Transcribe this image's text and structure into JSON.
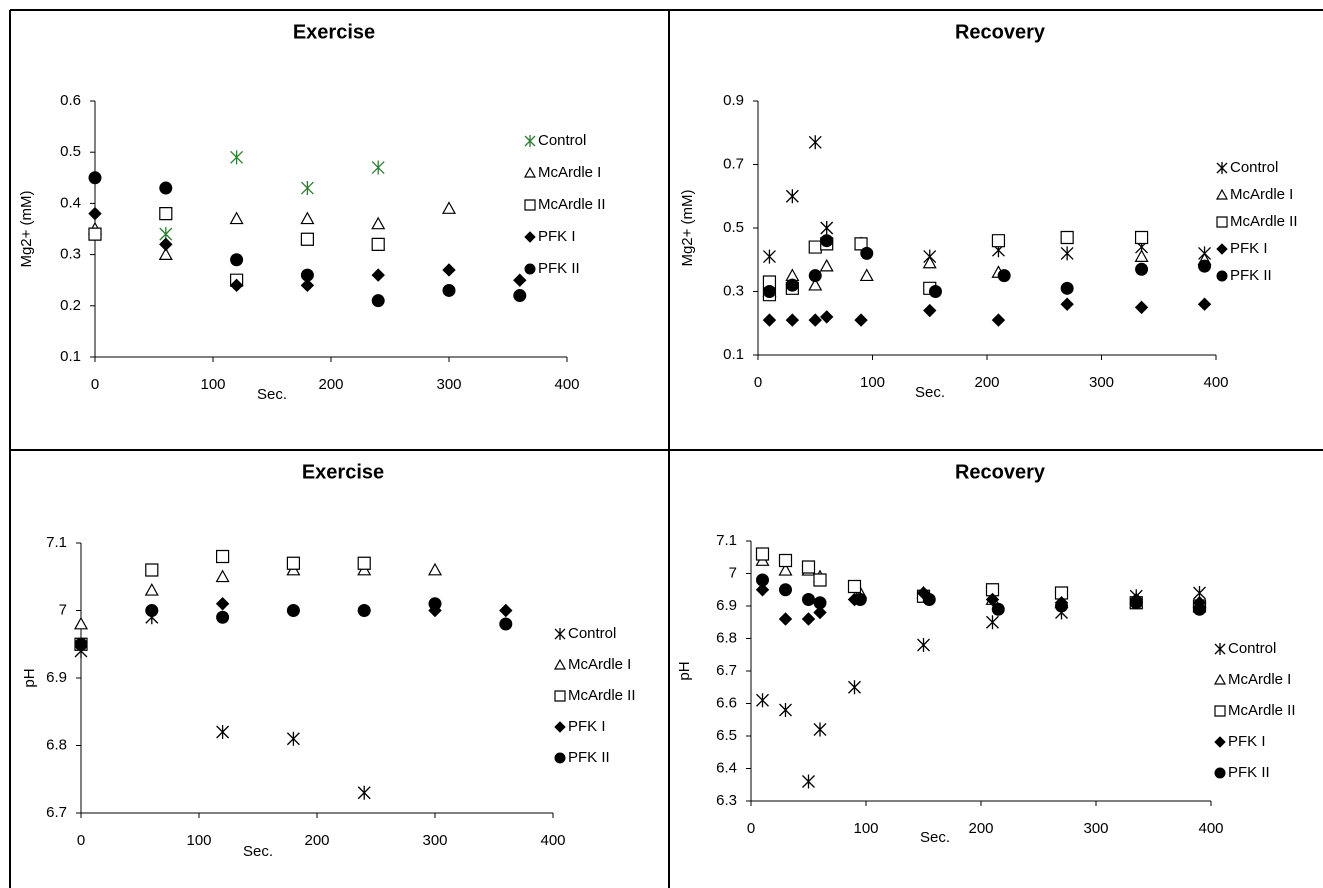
{
  "chart_data": [
    {
      "type": "scatter",
      "title": "Exercise",
      "x_label": "Sec.",
      "y_label": "Mg2+ (mM)",
      "xlim": [
        0,
        400
      ],
      "xticks": [
        0,
        100,
        200,
        300,
        400
      ],
      "ylim": [
        0.1,
        0.6
      ],
      "yticks": [
        0.1,
        0.2,
        0.3,
        0.4,
        0.5,
        0.6
      ],
      "series": [
        {
          "name": "Control",
          "marker": "asterisk",
          "color": "#2e7d32",
          "x": [
            60,
            120,
            180,
            240
          ],
          "values": [
            0.34,
            0.49,
            0.43,
            0.47
          ]
        },
        {
          "name": "McArdle I",
          "marker": "triangle",
          "color": "#000000",
          "x": [
            0,
            60,
            120,
            180,
            240,
            300
          ],
          "values": [
            0.35,
            0.3,
            0.37,
            0.37,
            0.36,
            0.39
          ]
        },
        {
          "name": "McArdle II",
          "marker": "square",
          "color": "#000000",
          "x": [
            0,
            60,
            120,
            180,
            240
          ],
          "values": [
            0.34,
            0.38,
            0.25,
            0.33,
            0.32
          ]
        },
        {
          "name": "PFK I",
          "marker": "diamond",
          "color": "#000000",
          "x": [
            0,
            60,
            120,
            180,
            240,
            300,
            360
          ],
          "values": [
            0.38,
            0.32,
            0.24,
            0.24,
            0.26,
            0.27,
            0.25
          ]
        },
        {
          "name": "PFK II",
          "marker": "circle",
          "color": "#000000",
          "x": [
            0,
            60,
            120,
            180,
            240,
            300,
            360
          ],
          "values": [
            0.45,
            0.43,
            0.29,
            0.26,
            0.21,
            0.23,
            0.22
          ]
        }
      ]
    },
    {
      "type": "scatter",
      "title": "Recovery",
      "x_label": "Sec.",
      "y_label": "Mg2+ (mM)",
      "xlim": [
        0,
        400
      ],
      "xticks": [
        0,
        100,
        200,
        300,
        400
      ],
      "ylim": [
        0.1,
        0.9
      ],
      "yticks": [
        0.1,
        0.3,
        0.5,
        0.7,
        0.9
      ],
      "series": [
        {
          "name": "Control",
          "marker": "asterisk",
          "color": "#000000",
          "x": [
            10,
            30,
            50,
            60,
            90,
            150,
            210,
            270,
            335,
            390
          ],
          "values": [
            0.41,
            0.6,
            0.77,
            0.5,
            0.45,
            0.41,
            0.43,
            0.42,
            0.44,
            0.42
          ]
        },
        {
          "name": "McArdle I",
          "marker": "triangle",
          "color": "#000000",
          "x": [
            10,
            30,
            50,
            60,
            95,
            150,
            210,
            335,
            390
          ],
          "values": [
            0.3,
            0.35,
            0.32,
            0.38,
            0.35,
            0.39,
            0.36,
            0.41,
            0.4
          ]
        },
        {
          "name": "McArdle II",
          "marker": "square",
          "color": "#000000",
          "x": [
            10,
            10,
            30,
            50,
            60,
            90,
            150,
            210,
            270,
            335
          ],
          "values": [
            0.33,
            0.29,
            0.31,
            0.44,
            0.45,
            0.45,
            0.31,
            0.46,
            0.47,
            0.47
          ]
        },
        {
          "name": "PFK I",
          "marker": "diamond",
          "color": "#000000",
          "x": [
            10,
            30,
            50,
            60,
            90,
            150,
            210,
            270,
            335,
            390
          ],
          "values": [
            0.21,
            0.21,
            0.21,
            0.22,
            0.21,
            0.24,
            0.21,
            0.26,
            0.25,
            0.26
          ]
        },
        {
          "name": "PFK II",
          "marker": "circle",
          "color": "#000000",
          "x": [
            10,
            30,
            50,
            60,
            95,
            155,
            215,
            270,
            335,
            390
          ],
          "values": [
            0.3,
            0.32,
            0.35,
            0.46,
            0.42,
            0.3,
            0.35,
            0.31,
            0.37,
            0.38
          ]
        }
      ]
    },
    {
      "type": "scatter",
      "title": "Exercise",
      "x_label": "Sec.",
      "y_label": "pH",
      "xlim": [
        0,
        400
      ],
      "xticks": [
        0,
        100,
        200,
        300,
        400
      ],
      "ylim": [
        6.7,
        7.1
      ],
      "yticks": [
        6.7,
        6.8,
        6.9,
        7,
        7.1
      ],
      "series": [
        {
          "name": "Control",
          "marker": "asterisk",
          "color": "#000000",
          "x": [
            0,
            60,
            120,
            180,
            240
          ],
          "values": [
            6.94,
            6.99,
            6.82,
            6.81,
            6.73
          ]
        },
        {
          "name": "McArdle I",
          "marker": "triangle",
          "color": "#000000",
          "x": [
            0,
            60,
            120,
            180,
            240,
            300
          ],
          "values": [
            6.98,
            7.03,
            7.05,
            7.06,
            7.06,
            7.06
          ]
        },
        {
          "name": "McArdle II",
          "marker": "square",
          "color": "#000000",
          "x": [
            0,
            60,
            120,
            180,
            240
          ],
          "values": [
            6.95,
            7.06,
            7.08,
            7.07,
            7.07
          ]
        },
        {
          "name": "PFK I",
          "marker": "diamond",
          "color": "#000000",
          "x": [
            0,
            60,
            120,
            180,
            240,
            300,
            360
          ],
          "values": [
            6.95,
            7.0,
            7.01,
            7.0,
            7.0,
            7.0,
            7.0
          ]
        },
        {
          "name": "PFK II",
          "marker": "circle",
          "color": "#000000",
          "x": [
            0,
            60,
            120,
            180,
            240,
            300,
            360
          ],
          "values": [
            6.95,
            7.0,
            6.99,
            7.0,
            7.0,
            7.01,
            6.98
          ]
        }
      ]
    },
    {
      "type": "scatter",
      "title": "Recovery",
      "x_label": "Sec.",
      "y_label": "pH",
      "xlim": [
        0,
        400
      ],
      "xticks": [
        0,
        100,
        200,
        300,
        400
      ],
      "ylim": [
        6.3,
        7.1
      ],
      "yticks": [
        6.3,
        6.4,
        6.5,
        6.6,
        6.7,
        6.8,
        6.9,
        7,
        7.1
      ],
      "series": [
        {
          "name": "Control",
          "marker": "asterisk",
          "color": "#000000",
          "x": [
            10,
            30,
            50,
            60,
            90,
            150,
            210,
            270,
            335,
            390
          ],
          "values": [
            6.61,
            6.58,
            6.36,
            6.52,
            6.65,
            6.78,
            6.85,
            6.88,
            6.93,
            6.94
          ]
        },
        {
          "name": "McArdle I",
          "marker": "triangle",
          "color": "#000000",
          "x": [
            10,
            30,
            50,
            60,
            95,
            150,
            210,
            270,
            335,
            390
          ],
          "values": [
            7.04,
            7.01,
            7.01,
            6.99,
            6.94,
            6.94,
            6.92,
            6.91,
            6.91,
            6.91
          ]
        },
        {
          "name": "McArdle II",
          "marker": "square",
          "color": "#000000",
          "x": [
            10,
            30,
            50,
            60,
            90,
            150,
            210,
            270,
            335,
            390
          ],
          "values": [
            7.06,
            7.04,
            7.02,
            6.98,
            6.96,
            6.93,
            6.95,
            6.94,
            6.91,
            6.9
          ]
        },
        {
          "name": "PFK I",
          "marker": "diamond",
          "color": "#000000",
          "x": [
            10,
            30,
            50,
            60,
            90,
            150,
            210,
            270,
            335,
            390
          ],
          "values": [
            6.95,
            6.86,
            6.86,
            6.88,
            6.92,
            6.94,
            6.92,
            6.91,
            6.92,
            6.91
          ]
        },
        {
          "name": "PFK II",
          "marker": "circle",
          "color": "#000000",
          "x": [
            10,
            30,
            50,
            60,
            95,
            155,
            215,
            270,
            335,
            390
          ],
          "values": [
            6.98,
            6.95,
            6.92,
            6.91,
            6.92,
            6.92,
            6.89,
            6.9,
            6.91,
            6.89
          ]
        }
      ]
    }
  ]
}
